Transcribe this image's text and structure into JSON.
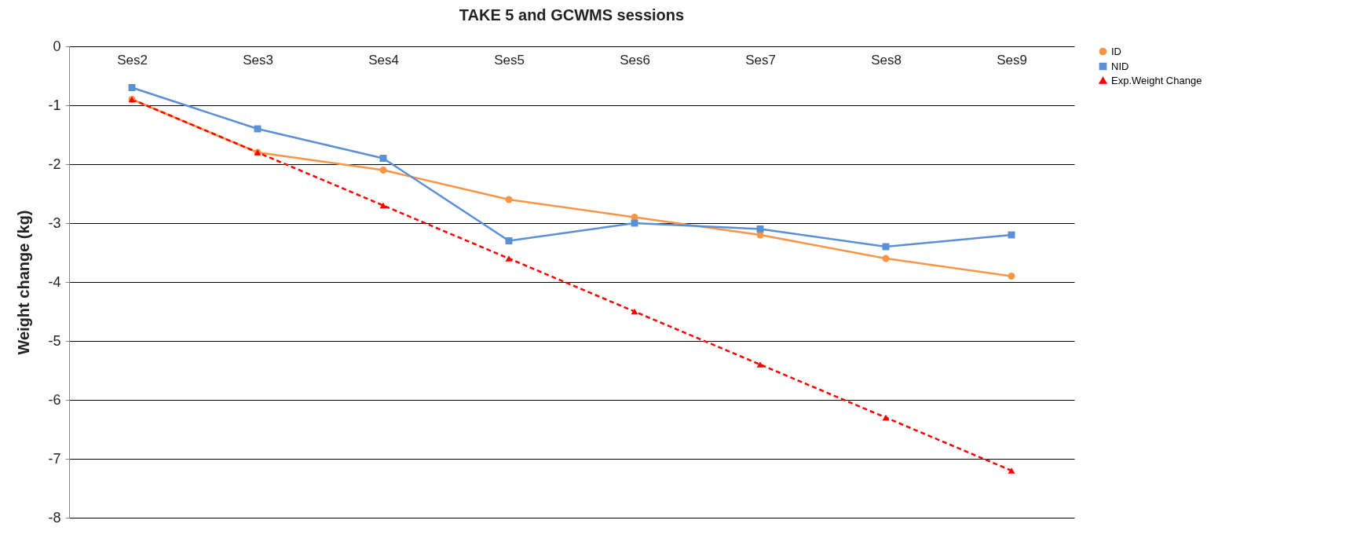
{
  "chart_data": {
    "type": "line",
    "title": "TAKE 5 and GCWMS sessions",
    "ylabel": "Weight change (kg)",
    "categories": [
      "Ses2",
      "Ses3",
      "Ses4",
      "Ses5",
      "Ses6",
      "Ses7",
      "Ses8",
      "Ses9"
    ],
    "series": [
      {
        "name": "ID",
        "color": "#f79646",
        "marker": "circle",
        "line_style": "solid",
        "values": [
          -0.9,
          -1.8,
          -2.1,
          -2.6,
          -2.9,
          -3.2,
          -3.6,
          -3.9
        ]
      },
      {
        "name": "NID",
        "color": "#5b8fd6",
        "marker": "square",
        "line_style": "solid",
        "values": [
          -0.7,
          -1.4,
          -1.9,
          -3.3,
          -3.0,
          -3.1,
          -3.4,
          -3.2
        ]
      },
      {
        "name": "Exp.Weight Change",
        "color": "#ff0000",
        "marker": "triangle",
        "line_style": "dashed",
        "values": [
          -0.9,
          -1.8,
          -2.7,
          -3.6,
          -4.5,
          -5.4,
          -6.3,
          -7.2
        ]
      }
    ],
    "ylim": [
      -8,
      0
    ],
    "yticks": [
      -8,
      -7,
      -6,
      -5,
      -4,
      -3,
      -2,
      -1,
      0
    ],
    "grid": "y",
    "legend": "right"
  }
}
